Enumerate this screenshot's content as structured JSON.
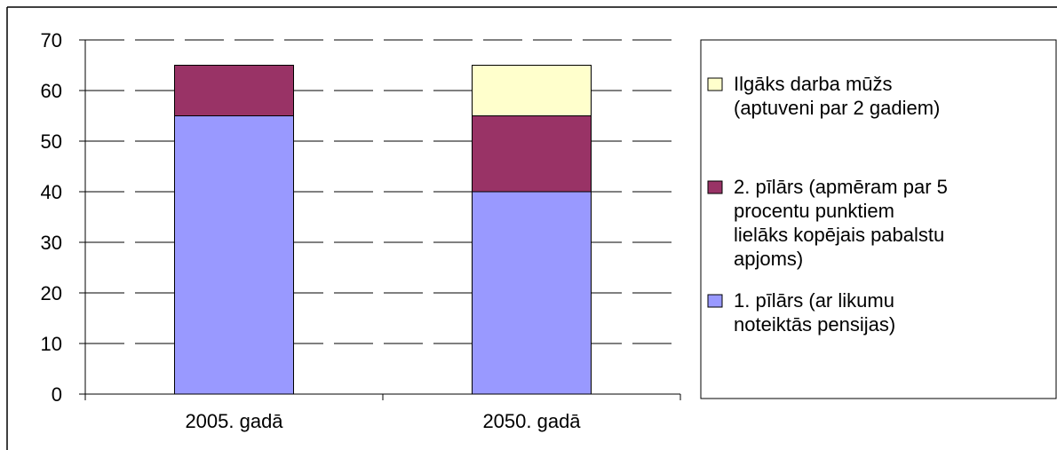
{
  "chart_data": {
    "type": "bar",
    "stacked": true,
    "categories": [
      "2005. gadā",
      "2050. gadā"
    ],
    "series": [
      {
        "name": "1. pīlārs (ar likumu noteiktās pensijas)",
        "legend_lines": [
          "1. pīlārs (ar likumu",
          "noteiktās pensijas)"
        ],
        "values": [
          55,
          40
        ],
        "color": "#9999FF"
      },
      {
        "name": "2. pīlārs (apmēram par 5 procentu punktiem lielāks kopējais pabalstu apjoms)",
        "legend_lines": [
          "2. pīlārs (apmēram par 5",
          "procentu punktiem",
          "lielāks kopējais pabalstu",
          "apjoms)"
        ],
        "values": [
          10,
          15
        ],
        "color": "#993366"
      },
      {
        "name": "Ilgāks darba mūžs (aptuveni par 2 gadiem)",
        "legend_lines": [
          "Ilgāks darba mūžs",
          "(aptuveni par 2 gadiem)"
        ],
        "values": [
          0,
          10
        ],
        "color": "#FFFFCC"
      }
    ],
    "yticks": [
      0,
      10,
      20,
      30,
      40,
      50,
      60,
      70
    ],
    "ylim": [
      0,
      70
    ],
    "grid": true,
    "legend_position": "right"
  }
}
